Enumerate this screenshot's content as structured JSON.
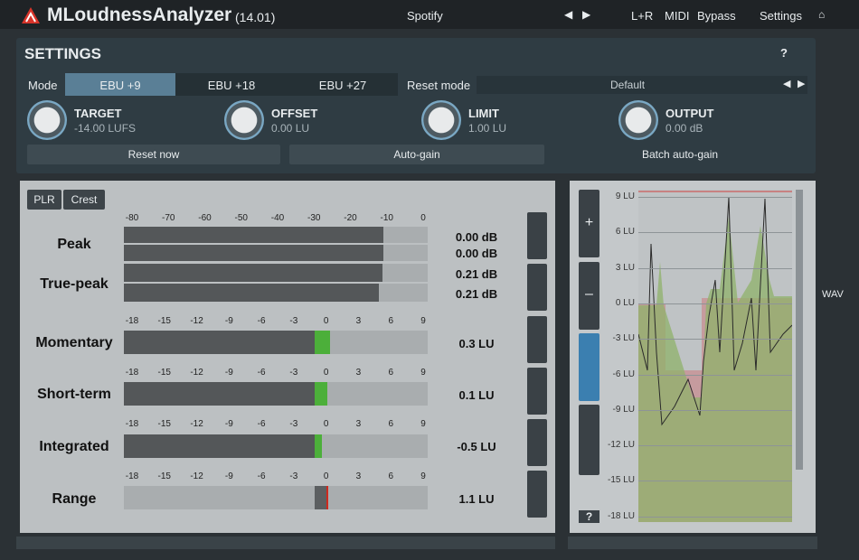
{
  "header": {
    "title": "MLoudnessAnalyzer",
    "version": "(14.01)",
    "preset": "Spotify",
    "channel": "L+R",
    "midi": "MIDI",
    "bypass": "Bypass",
    "settings": "Settings"
  },
  "settings": {
    "title": "SETTINGS",
    "help": "?",
    "mode_label": "Mode",
    "modes": [
      "EBU +9",
      "EBU +18",
      "EBU +27"
    ],
    "reset_mode_label": "Reset mode",
    "reset_mode_value": "Default",
    "knobs": [
      {
        "name": "TARGET",
        "value": "-14.00 LUFS"
      },
      {
        "name": "OFFSET",
        "value": "0.00 LU"
      },
      {
        "name": "LIMIT",
        "value": "1.00 LU"
      },
      {
        "name": "OUTPUT",
        "value": "0.00 dB"
      }
    ],
    "buttons": [
      "Reset now",
      "Auto-gain",
      "Batch auto-gain"
    ]
  },
  "meters": {
    "tabs": [
      "PLR",
      "Crest"
    ],
    "db_scale": [
      "-80",
      "-70",
      "-60",
      "-50",
      "-40",
      "-30",
      "-20",
      "-10",
      "0"
    ],
    "lu_scale": [
      "-18",
      "-15",
      "-12",
      "-9",
      "-6",
      "-3",
      "0",
      "3",
      "6",
      "9"
    ],
    "rows": [
      {
        "label": "Peak",
        "values": [
          "0.00 dB",
          "0.00 dB"
        ]
      },
      {
        "label": "True-peak",
        "values": [
          "0.21 dB",
          "0.21 dB"
        ]
      },
      {
        "label": "Momentary",
        "values": [
          "0.3 LU"
        ]
      },
      {
        "label": "Short-term",
        "values": [
          "0.1 LU"
        ]
      },
      {
        "label": "Integrated",
        "values": [
          "-0.5 LU"
        ]
      },
      {
        "label": "Range",
        "values": [
          "1.1 LU"
        ]
      }
    ]
  },
  "graph": {
    "y_labels": [
      "9 LU",
      "6 LU",
      "3 LU",
      "0 LU",
      "-3 LU",
      "-6 LU",
      "-9 LU",
      "-12 LU",
      "-15 LU",
      "-18 LU"
    ],
    "zoom_in": "+",
    "zoom_out": "–",
    "side_label": "WAV",
    "help": "?"
  }
}
